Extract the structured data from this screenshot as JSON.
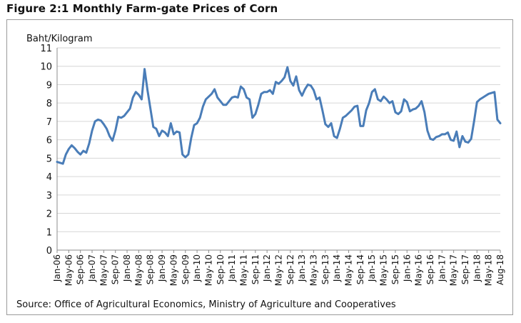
{
  "figure_title": "Figure 2:1 Monthly Farm-gate Prices of Corn",
  "source_text": "Source: Office of Agricultural  Economics, Ministry  of Agriculture  and Cooperatives",
  "colors": {
    "line": "#4a7db8",
    "grid": "#d6d6d6",
    "axis": "#8c8c8c",
    "text": "#111111"
  },
  "chart_data": {
    "type": "line",
    "title": "",
    "xlabel": "",
    "ylabel": "Baht/Kilogram",
    "ylim": [
      0,
      11
    ],
    "yticks": [
      0,
      1,
      2,
      3,
      4,
      5,
      6,
      7,
      8,
      9,
      10,
      11
    ],
    "grid": true,
    "legend": "none",
    "x_start": "Jan-06",
    "x_end": "Aug-18",
    "xtick_labels": [
      "Jan-06",
      "May-06",
      "Sep-06",
      "Jan-07",
      "May-07",
      "Sep-07",
      "Jan-08",
      "May-08",
      "Sep-08",
      "Jan-09",
      "May-09",
      "Sep-09",
      "Jan-10",
      "May-10",
      "Sep-10",
      "Jan-11",
      "May-11",
      "Sep-11",
      "Jan-12",
      "May-12",
      "Sep-12",
      "Jan-13",
      "May-13",
      "Sep-13",
      "Jan-14",
      "May-14",
      "Sep-14",
      "Jan-15",
      "May-15",
      "Sep-15",
      "Jan-16",
      "May-16",
      "Sep-16",
      "Jan-17",
      "May-17",
      "Sep-17",
      "Jan-18",
      "May-18",
      "Aug-18"
    ],
    "series": [
      {
        "name": "",
        "values": [
          4.8,
          4.75,
          4.7,
          5.2,
          5.5,
          5.7,
          5.55,
          5.35,
          5.2,
          5.4,
          5.3,
          5.8,
          6.5,
          7.0,
          7.1,
          7.05,
          6.85,
          6.6,
          6.2,
          5.95,
          6.5,
          7.25,
          7.2,
          7.3,
          7.5,
          7.7,
          8.3,
          8.6,
          8.45,
          8.2,
          9.85,
          8.7,
          7.7,
          6.7,
          6.6,
          6.2,
          6.5,
          6.4,
          6.2,
          6.9,
          6.3,
          6.45,
          6.4,
          5.2,
          5.05,
          5.2,
          6.1,
          6.8,
          6.9,
          7.2,
          7.8,
          8.2,
          8.35,
          8.5,
          8.75,
          8.3,
          8.1,
          7.9,
          7.9,
          8.1,
          8.3,
          8.35,
          8.3,
          8.9,
          8.75,
          8.3,
          8.2,
          7.2,
          7.4,
          7.9,
          8.5,
          8.6,
          8.6,
          8.7,
          8.5,
          9.15,
          9.05,
          9.2,
          9.4,
          9.95,
          9.2,
          8.95,
          9.45,
          8.7,
          8.4,
          8.75,
          9.0,
          8.95,
          8.7,
          8.2,
          8.3,
          7.6,
          6.85,
          6.7,
          6.9,
          6.2,
          6.1,
          6.6,
          7.2,
          7.3,
          7.45,
          7.6,
          7.8,
          7.85,
          6.75,
          6.75,
          7.6,
          8.0,
          8.6,
          8.75,
          8.2,
          8.1,
          8.35,
          8.2,
          8.0,
          8.1,
          7.5,
          7.4,
          7.55,
          8.2,
          8.05,
          7.55,
          7.65,
          7.7,
          7.85,
          8.1,
          7.5,
          6.5,
          6.05,
          6.0,
          6.15,
          6.2,
          6.3,
          6.3,
          6.4,
          6.0,
          5.95,
          6.45,
          5.6,
          6.2,
          5.9,
          5.85,
          6.05,
          7.0,
          8.05,
          8.2,
          8.3,
          8.4,
          8.5,
          8.55,
          8.6,
          7.1,
          6.9
        ]
      }
    ]
  }
}
